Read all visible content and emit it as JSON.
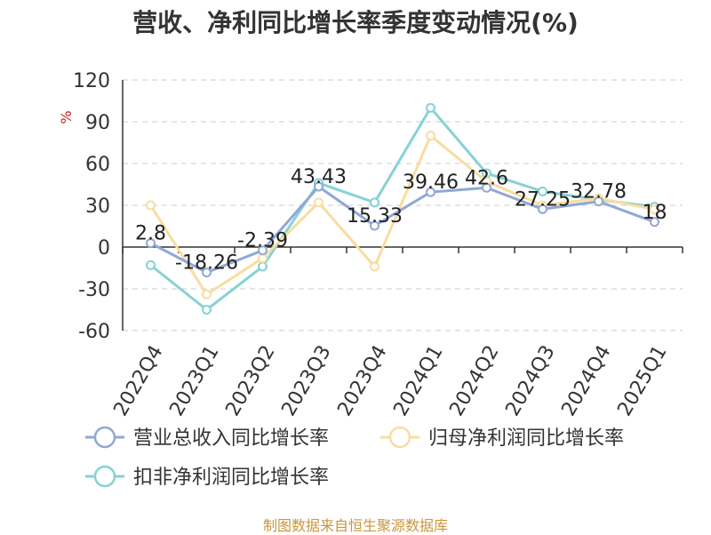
{
  "source_text": "制图数据来自恒生聚源数据库",
  "chart_data": {
    "type": "line",
    "title": "营收、净利同比增长率季度变动情况(%)",
    "ylabel": "%",
    "xlabel": "",
    "ylim": [
      -60,
      120
    ],
    "yticks": [
      120,
      90,
      60,
      30,
      0,
      -30,
      -60
    ],
    "grid": true,
    "legend": "bottom",
    "categories": [
      "2022Q4",
      "2023Q1",
      "2023Q2",
      "2023Q3",
      "2023Q4",
      "2024Q1",
      "2024Q2",
      "2024Q3",
      "2024Q4",
      "2025Q1"
    ],
    "series": [
      {
        "name": "营业总收入同比增长率",
        "color": "#8fa8d6",
        "values": [
          2.8,
          -18.26,
          -2.39,
          43.43,
          15.33,
          39.46,
          42.6,
          27.25,
          32.78,
          18
        ],
        "labels": [
          "2.8",
          "-18.26",
          "-2.39",
          "43.43",
          "15.33",
          "39.46",
          "42.6",
          "27.25",
          "32.78",
          "18"
        ]
      },
      {
        "name": "归母净利润同比增长率",
        "color": "#f9dca0",
        "values": [
          30,
          -34,
          -8,
          32,
          -14,
          80,
          47,
          30,
          35,
          27
        ]
      },
      {
        "name": "扣非净利润同比增长率",
        "color": "#86d2d4",
        "values": [
          -13,
          -45,
          -14,
          46,
          32,
          100,
          53,
          40,
          34,
          29
        ]
      }
    ]
  }
}
